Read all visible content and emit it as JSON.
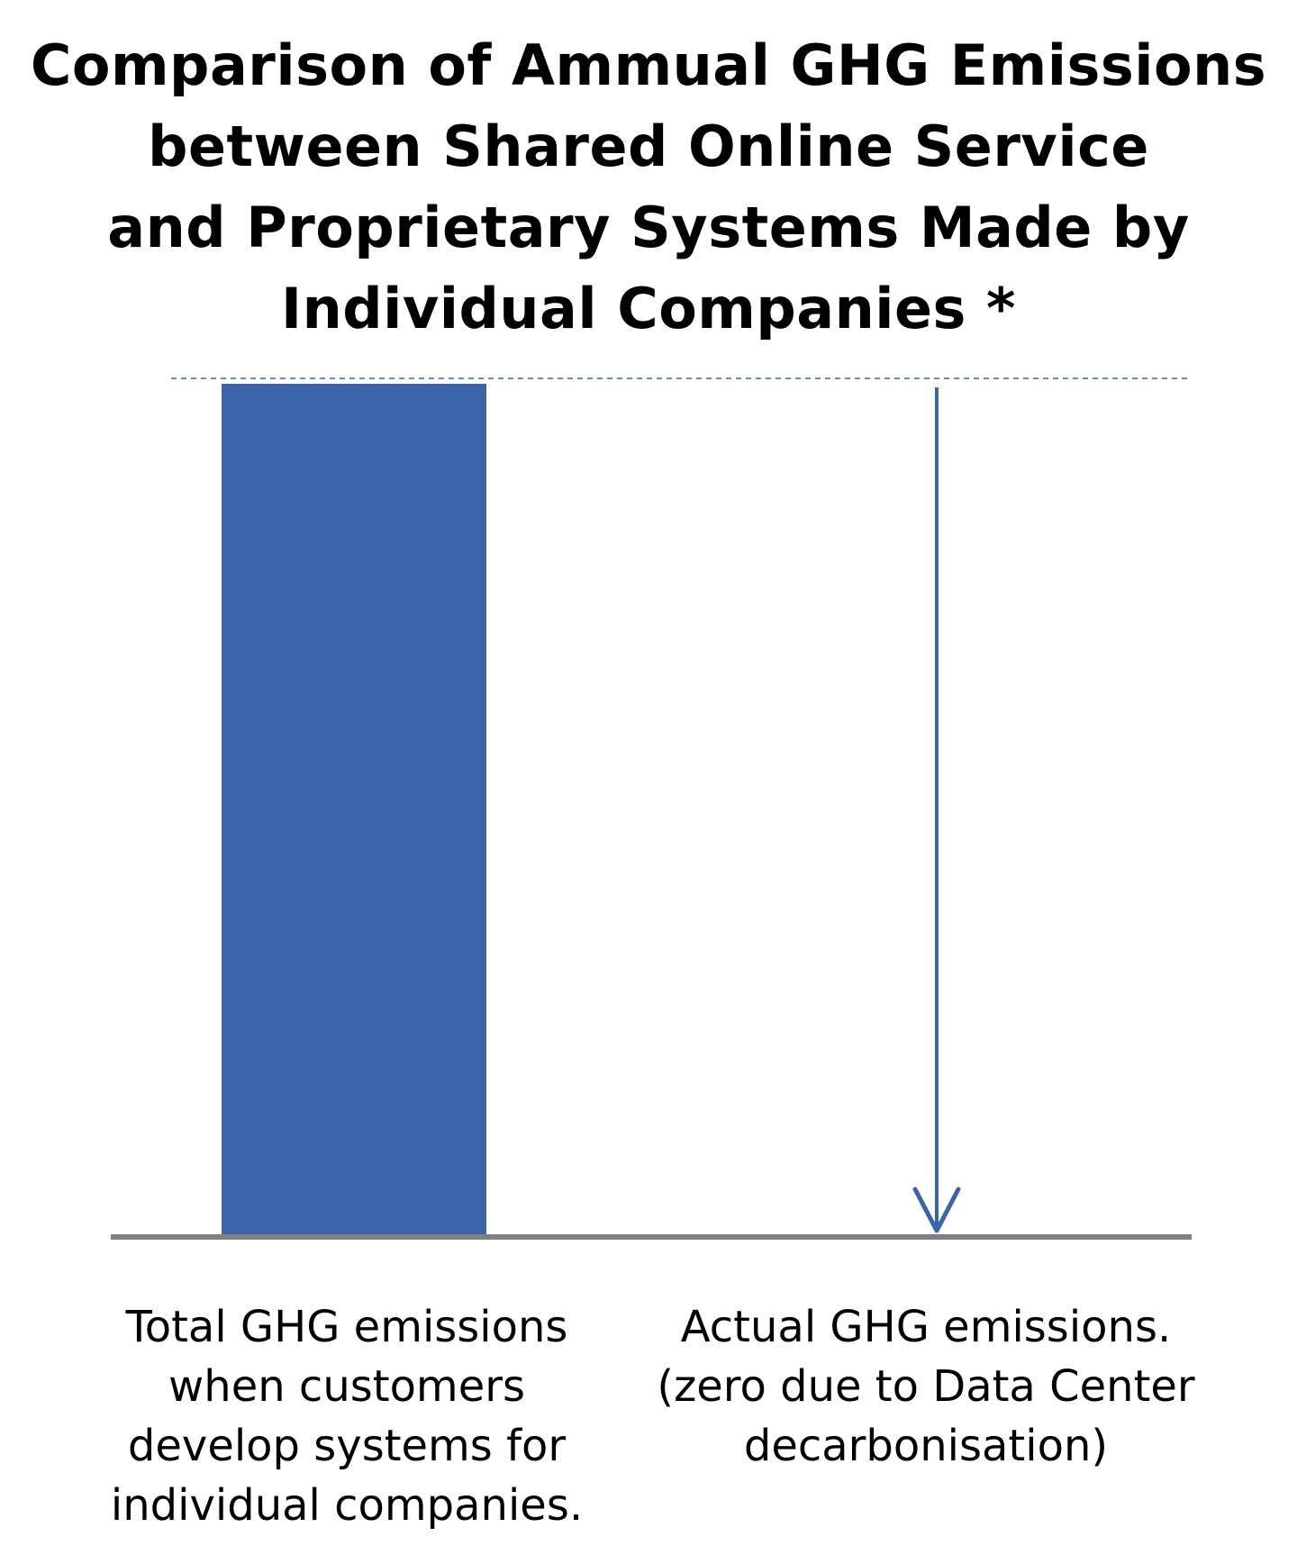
{
  "chart_data": {
    "type": "bar",
    "title": "Comparison of Ammual GHG Emissions between Shared Online Service and Proprietary Systems Made by Individual Companies *",
    "title_lines": [
      "Comparison of Ammual GHG Emissions",
      "between Shared Online Service",
      "and Proprietary Systems Made by",
      "Individual Companies *"
    ],
    "categories": [
      "Total GHG emissions when customers develop systems for individual companies.",
      "Actual GHG emissions. (zero due to Data Center decarbonisation)"
    ],
    "category_label_lines": [
      [
        "Total GHG emissions",
        "when customers",
        "develop systems for",
        "individual companies."
      ],
      [
        "Actual GHG emissions.",
        "(zero due to Data Center",
        "decarbonisation)"
      ]
    ],
    "values": [
      100,
      0
    ],
    "ylim": [
      0,
      100
    ],
    "xlabel": "",
    "ylabel": "",
    "grid": false,
    "legend": "none",
    "reference_line": {
      "value": 100,
      "style": "dashed"
    },
    "annotation": {
      "type": "arrow-down",
      "from": 100,
      "to": 0,
      "category_index": 1
    },
    "colors": {
      "bar": "#3c64a8",
      "arrow": "#3c64a8",
      "reference_line": "#3c64a8",
      "baseline": "#808080"
    }
  }
}
